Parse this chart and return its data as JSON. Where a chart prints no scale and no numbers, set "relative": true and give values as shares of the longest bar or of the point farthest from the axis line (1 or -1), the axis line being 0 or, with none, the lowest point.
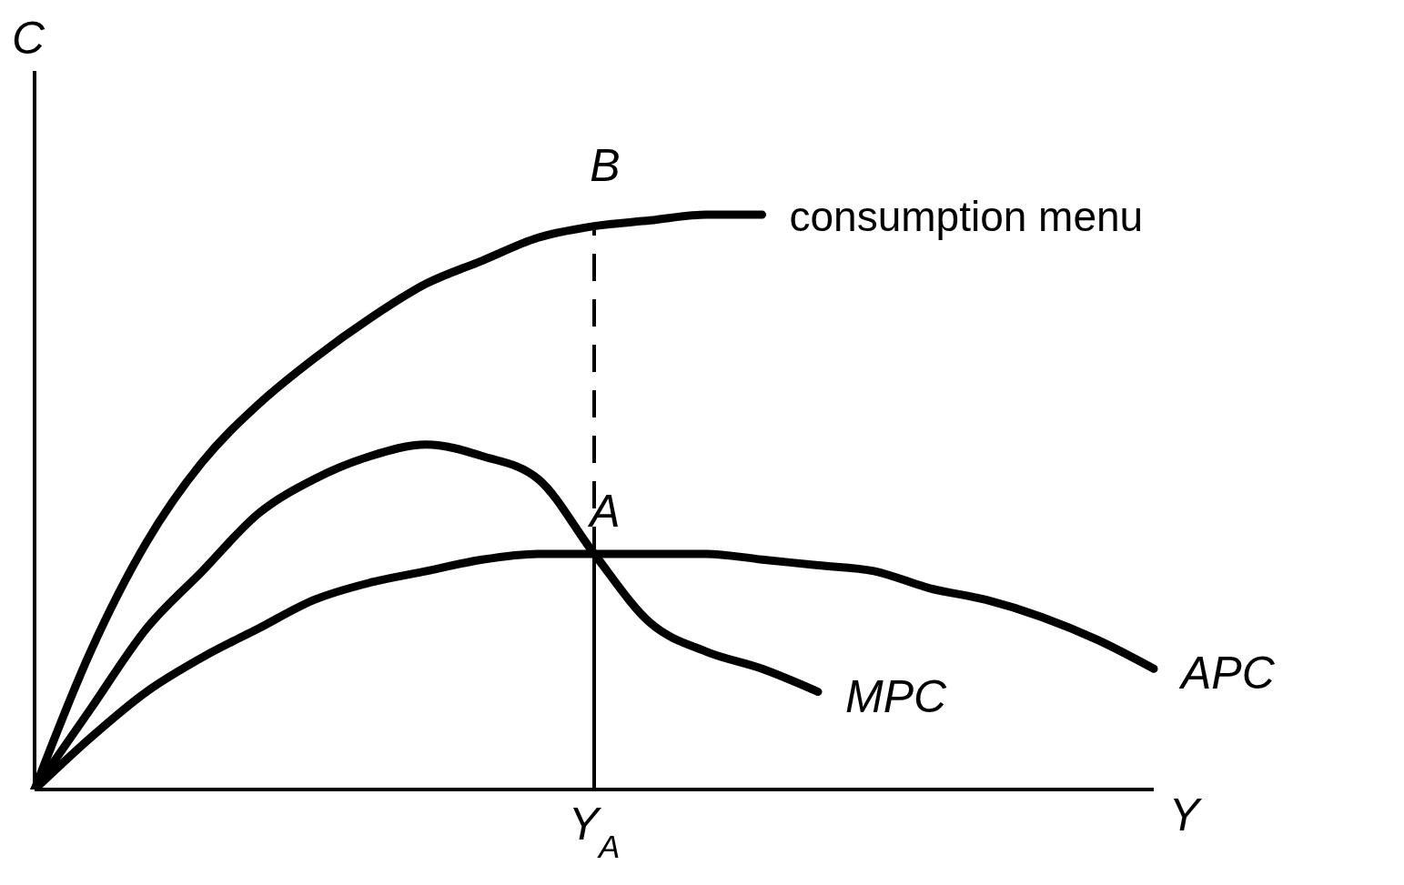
{
  "chart_data": {
    "type": "line",
    "relative": true,
    "xlabel": "Y",
    "ylabel": "C",
    "legend": false,
    "grid": false,
    "marker": "none",
    "line_style": "solid",
    "categories": [
      null,
      null,
      null,
      null,
      null,
      null,
      null,
      null,
      null,
      null,
      null,
      null,
      null,
      null,
      null,
      null,
      null,
      null,
      null,
      null,
      null
    ],
    "series": [
      {
        "name": "consumption menu",
        "color": "#000000",
        "values": [
          0,
          0.24,
          0.43,
          0.57,
          0.67,
          0.75,
          0.82,
          0.88,
          0.92,
          0.96,
          0.98,
          0.99,
          1,
          1,
          null,
          null,
          null,
          null,
          null,
          null,
          null
        ]
      },
      {
        "name": "MPC",
        "color": "#000000",
        "values": [
          0,
          0.14,
          0.28,
          0.38,
          0.48,
          0.54,
          0.58,
          0.6,
          0.58,
          0.54,
          0.41,
          0.29,
          0.24,
          0.21,
          0.17,
          null,
          null,
          null,
          null,
          null,
          null
        ]
      },
      {
        "name": "APC",
        "color": "#000000",
        "values": [
          0,
          0.09,
          0.17,
          0.23,
          0.28,
          0.33,
          0.36,
          0.38,
          0.4,
          0.41,
          0.41,
          0.41,
          0.41,
          0.4,
          0.39,
          0.38,
          0.35,
          0.33,
          0.3,
          0.26,
          0.21
        ]
      }
    ],
    "annotations": [
      {
        "text": "A",
        "y": 0.41
      },
      {
        "text": "B",
        "y": 0.98
      },
      "Y$_{A}$"
    ]
  }
}
